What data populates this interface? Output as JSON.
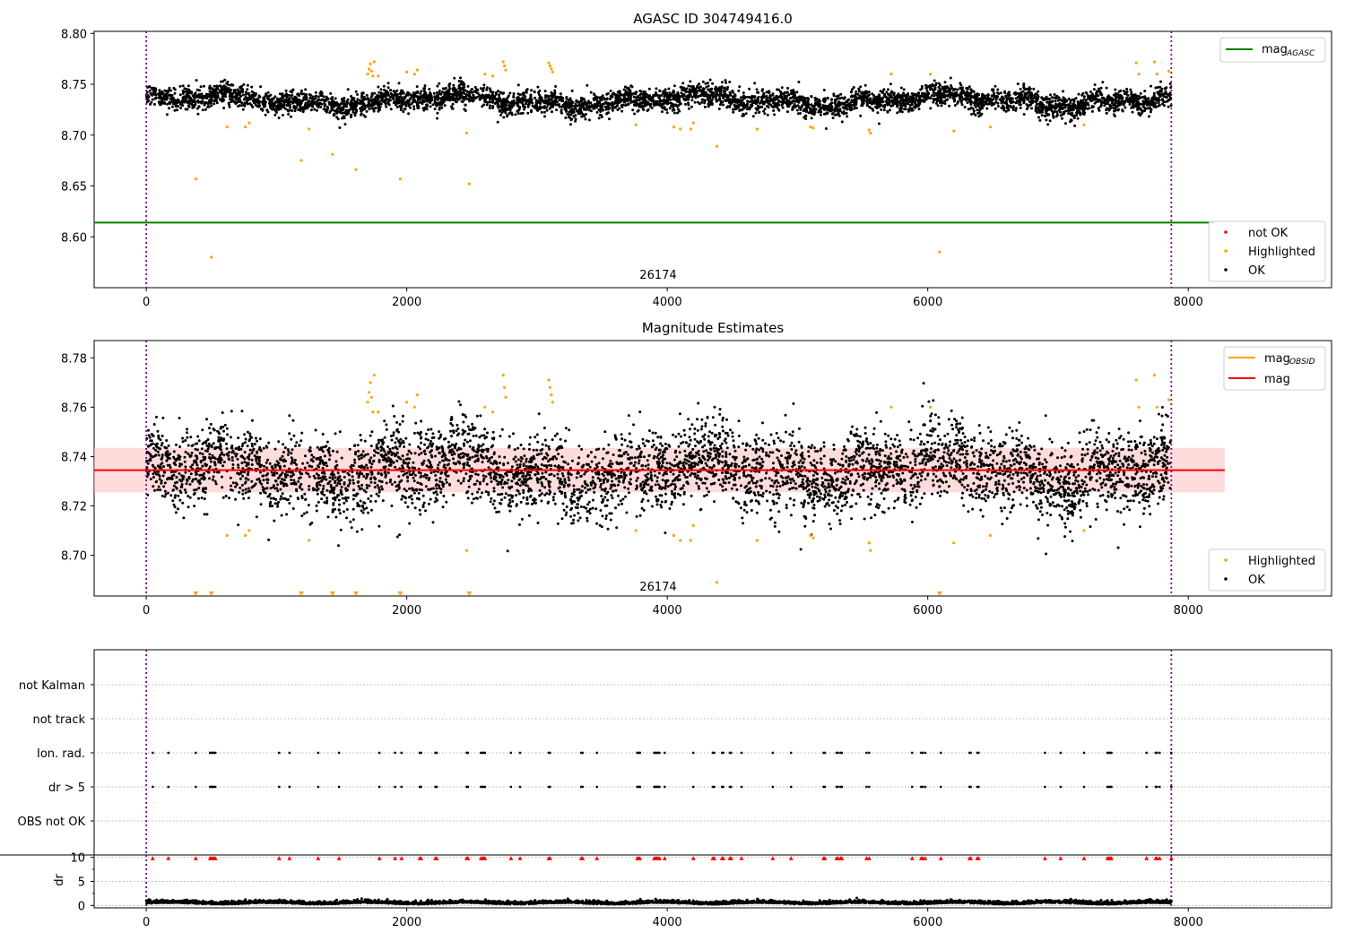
{
  "colors": {
    "ok": "#000000",
    "highlighted": "#ffa500",
    "not_ok": "#ff0000",
    "mag_agasc_line": "#008000",
    "mag_line": "#ff0000",
    "mag_band": "#ffc0c0",
    "vline": "#800080",
    "grid": "#b0b0b0"
  },
  "chart_data": [
    {
      "id": "top",
      "type": "scatter",
      "title": "AGASC ID 304749416.0",
      "xlim": [
        -400,
        9100
      ],
      "ylim": [
        8.55,
        8.802
      ],
      "xticks": [
        0,
        2000,
        4000,
        6000,
        8000
      ],
      "xtick_labels": [
        "0",
        "2000",
        "4000",
        "6000",
        "8000"
      ],
      "yticks": [
        8.6,
        8.65,
        8.7,
        8.75,
        8.8
      ],
      "ytick_labels": [
        "8.60",
        "8.65",
        "8.70",
        "8.75",
        "8.80"
      ],
      "vlines": [
        0,
        7870
      ],
      "annotation": {
        "text": "26174",
        "x": 3930,
        "y": 8.563
      },
      "mag_agasc": 8.614,
      "ok_band": {
        "x_start": 0,
        "x_end": 7870,
        "center": 8.734,
        "spread": 0.012
      },
      "highlighted_points": [
        [
          380,
          8.657
        ],
        [
          500,
          8.58
        ],
        [
          620,
          8.708
        ],
        [
          760,
          8.708
        ],
        [
          790,
          8.712
        ],
        [
          1190,
          8.675
        ],
        [
          1250,
          8.706
        ],
        [
          1430,
          8.681
        ],
        [
          1610,
          8.666
        ],
        [
          1700,
          8.76
        ],
        [
          1710,
          8.765
        ],
        [
          1720,
          8.77
        ],
        [
          1730,
          8.763
        ],
        [
          1740,
          8.758
        ],
        [
          1750,
          8.772
        ],
        [
          1780,
          8.758
        ],
        [
          1950,
          8.657
        ],
        [
          2000,
          8.762
        ],
        [
          2060,
          8.76
        ],
        [
          2080,
          8.764
        ],
        [
          2460,
          8.702
        ],
        [
          2480,
          8.652
        ],
        [
          2600,
          8.76
        ],
        [
          2660,
          8.758
        ],
        [
          2740,
          8.772
        ],
        [
          2750,
          8.768
        ],
        [
          2760,
          8.764
        ],
        [
          3090,
          8.771
        ],
        [
          3100,
          8.768
        ],
        [
          3110,
          8.765
        ],
        [
          3120,
          8.762
        ],
        [
          3760,
          8.71
        ],
        [
          4050,
          8.708
        ],
        [
          4100,
          8.706
        ],
        [
          4180,
          8.706
        ],
        [
          4200,
          8.712
        ],
        [
          4380,
          8.689
        ],
        [
          4690,
          8.706
        ],
        [
          5100,
          8.708
        ],
        [
          5120,
          8.707
        ],
        [
          5550,
          8.705
        ],
        [
          5560,
          8.702
        ],
        [
          5720,
          8.76
        ],
        [
          6020,
          8.76
        ],
        [
          6090,
          8.585
        ],
        [
          6200,
          8.704
        ],
        [
          6480,
          8.708
        ],
        [
          7200,
          8.71
        ],
        [
          7600,
          8.771
        ],
        [
          7620,
          8.76
        ],
        [
          7740,
          8.772
        ],
        [
          7760,
          8.76
        ],
        [
          7850,
          8.763
        ]
      ],
      "legend_lines": [
        {
          "label": "mag",
          "sub": "AGASC"
        }
      ],
      "legend_points": [
        {
          "label": "not OK",
          "color": "#ff0000"
        },
        {
          "label": "Highlighted",
          "color": "#ffa500"
        },
        {
          "label": "OK",
          "color": "#000000"
        }
      ]
    },
    {
      "id": "mid",
      "type": "scatter",
      "title": "Magnitude Estimates",
      "xlim": [
        -400,
        9100
      ],
      "ylim": [
        8.6835,
        8.787
      ],
      "xticks": [
        0,
        2000,
        4000,
        6000,
        8000
      ],
      "xtick_labels": [
        "0",
        "2000",
        "4000",
        "6000",
        "8000"
      ],
      "yticks": [
        8.7,
        8.72,
        8.74,
        8.76,
        8.78
      ],
      "ytick_labels": [
        "8.70",
        "8.72",
        "8.74",
        "8.76",
        "8.78"
      ],
      "vlines": [
        0,
        7870
      ],
      "annotation": {
        "text": "26174",
        "x": 3930,
        "y": 8.6875
      },
      "mag": 8.7345,
      "mag_band": [
        8.7255,
        8.7435
      ],
      "mag_band_x": [
        -400,
        8280
      ],
      "ok_band": {
        "x_start": 0,
        "x_end": 7870,
        "center": 8.734,
        "spread": 0.018
      },
      "highlighted_points": [
        [
          380,
          8.684
        ],
        [
          500,
          8.684
        ],
        [
          620,
          8.708
        ],
        [
          760,
          8.708
        ],
        [
          790,
          8.71
        ],
        [
          1190,
          8.684
        ],
        [
          1250,
          8.706
        ],
        [
          1430,
          8.684
        ],
        [
          1610,
          8.684
        ],
        [
          1700,
          8.762
        ],
        [
          1710,
          8.766
        ],
        [
          1720,
          8.77
        ],
        [
          1730,
          8.764
        ],
        [
          1740,
          8.758
        ],
        [
          1750,
          8.773
        ],
        [
          1780,
          8.758
        ],
        [
          1950,
          8.684
        ],
        [
          2000,
          8.762
        ],
        [
          2060,
          8.76
        ],
        [
          2080,
          8.765
        ],
        [
          2460,
          8.702
        ],
        [
          2480,
          8.684
        ],
        [
          2600,
          8.76
        ],
        [
          2660,
          8.758
        ],
        [
          2740,
          8.773
        ],
        [
          2750,
          8.768
        ],
        [
          2760,
          8.764
        ],
        [
          3090,
          8.771
        ],
        [
          3100,
          8.768
        ],
        [
          3110,
          8.765
        ],
        [
          3120,
          8.762
        ],
        [
          3760,
          8.71
        ],
        [
          4050,
          8.708
        ],
        [
          4100,
          8.706
        ],
        [
          4180,
          8.706
        ],
        [
          4200,
          8.712
        ],
        [
          4380,
          8.689
        ],
        [
          4690,
          8.706
        ],
        [
          5100,
          8.708
        ],
        [
          5120,
          8.707
        ],
        [
          5550,
          8.705
        ],
        [
          5560,
          8.702
        ],
        [
          5720,
          8.76
        ],
        [
          6020,
          8.76
        ],
        [
          6090,
          8.684
        ],
        [
          6200,
          8.705
        ],
        [
          6480,
          8.708
        ],
        [
          7200,
          8.71
        ],
        [
          7600,
          8.771
        ],
        [
          7620,
          8.76
        ],
        [
          7740,
          8.773
        ],
        [
          7760,
          8.76
        ],
        [
          7850,
          8.763
        ]
      ],
      "legend_lines": [
        {
          "label": "mag",
          "sub": "OBSID",
          "color": "#ffa500"
        },
        {
          "label": "mag",
          "sub": "",
          "color": "#ff0000"
        }
      ],
      "legend_points": [
        {
          "label": "Highlighted",
          "color": "#ffa500"
        },
        {
          "label": "OK",
          "color": "#000000"
        }
      ]
    },
    {
      "id": "flags",
      "type": "scatter",
      "xlim": [
        -400,
        9100
      ],
      "categories": [
        "not Kalman",
        "not track",
        "Ion. rad.",
        "dr > 5",
        "OBS not OK"
      ],
      "vlines": [
        0,
        7870
      ],
      "flag_x": [
        50,
        170,
        380,
        490,
        500,
        510,
        520,
        530,
        1020,
        1100,
        1320,
        1480,
        1790,
        1910,
        1960,
        2100,
        2110,
        2220,
        2230,
        2460,
        2470,
        2570,
        2580,
        2590,
        2600,
        2800,
        2870,
        3090,
        3100,
        3340,
        3350,
        3460,
        3770,
        3780,
        3790,
        3900,
        3910,
        3920,
        3930,
        3940,
        3980,
        4200,
        4350,
        4360,
        4420,
        4430,
        4480,
        4490,
        4570,
        4810,
        4950,
        5200,
        5210,
        5300,
        5310,
        5330,
        5340,
        5530,
        5550,
        5880,
        5950,
        5960,
        5980,
        6100,
        6320,
        6330,
        6380,
        6390,
        6900,
        7020,
        7200,
        7380,
        7390,
        7400,
        7410,
        7680,
        7750,
        7760,
        7780,
        7870
      ]
    },
    {
      "id": "dr",
      "type": "scatter",
      "ylabel": "dr",
      "xlim": [
        -400,
        9100
      ],
      "ylim": [
        -0.5,
        10.5
      ],
      "xticks": [
        0,
        2000,
        4000,
        6000,
        8000
      ],
      "xtick_labels": [
        "0",
        "2000",
        "4000",
        "6000",
        "8000"
      ],
      "yticks": [
        0,
        5,
        10
      ],
      "ytick_labels": [
        "0",
        "5",
        "10"
      ],
      "vlines": [
        0,
        7870
      ],
      "dr_base": 0.4,
      "dr_spread": 0.3,
      "clipped_value": 9.8
    }
  ]
}
